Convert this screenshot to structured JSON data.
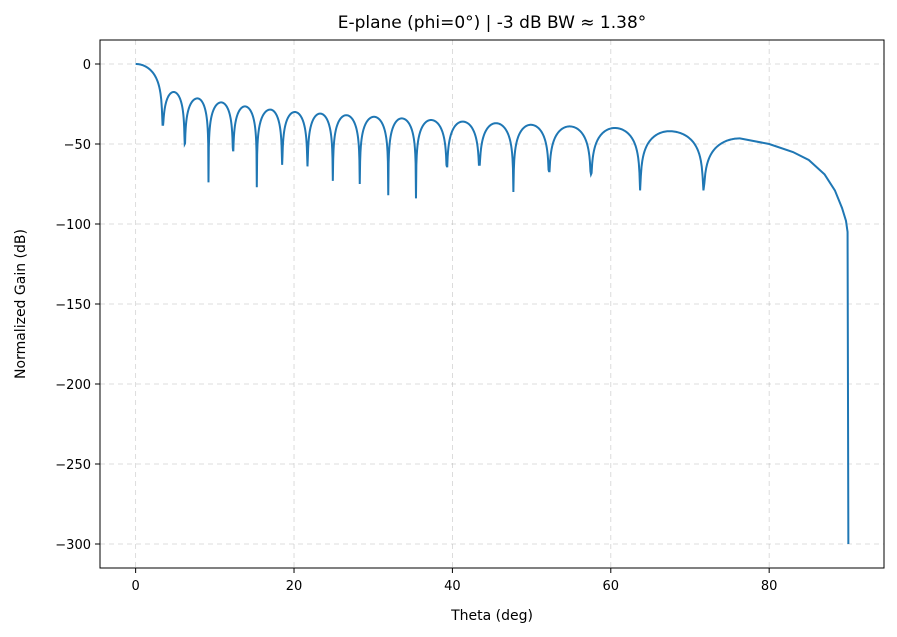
{
  "chart_data": {
    "type": "line",
    "title": "E-plane (phi=0°)  |  -3 dB BW ≈ 1.38°",
    "xlabel": "Theta (deg)",
    "ylabel": "Normalized Gain (dB)",
    "xlim": [
      -4.5,
      94.5
    ],
    "ylim": [
      -315,
      15
    ],
    "xticks": [
      0,
      20,
      40,
      60,
      80
    ],
    "yticks": [
      0,
      -50,
      -100,
      -150,
      -200,
      -250,
      -300
    ],
    "ytick_labels": [
      "0",
      "−50",
      "−100",
      "−150",
      "−200",
      "−250",
      "−300"
    ],
    "grid": true,
    "line_color": "#1f77b4",
    "lobes": {
      "peaks": [
        [
          0,
          0
        ],
        [
          4.8,
          -17.5
        ],
        [
          7.8,
          -21.5
        ],
        [
          10.8,
          -24
        ],
        [
          13.8,
          -26.5
        ],
        [
          17,
          -28.5
        ],
        [
          20.1,
          -30
        ],
        [
          23.3,
          -31
        ],
        [
          26.6,
          -32
        ],
        [
          30.1,
          -33
        ],
        [
          33.6,
          -34
        ],
        [
          37.3,
          -35
        ],
        [
          41.3,
          -36
        ],
        [
          45.5,
          -37
        ],
        [
          49.9,
          -38
        ],
        [
          54.8,
          -39
        ],
        [
          60.5,
          -40
        ],
        [
          67.4,
          -42
        ],
        [
          76.3,
          -46.5
        ]
      ],
      "nulls": [
        [
          3.4,
          -38
        ],
        [
          6.2,
          -50
        ],
        [
          9.2,
          -74
        ],
        [
          12.3,
          -54
        ],
        [
          15.3,
          -77
        ],
        [
          18.5,
          -63
        ],
        [
          21.7,
          -64
        ],
        [
          24.9,
          -73
        ],
        [
          28.3,
          -75
        ],
        [
          31.9,
          -82
        ],
        [
          35.4,
          -84
        ],
        [
          39.3,
          -64
        ],
        [
          43.4,
          -63
        ],
        [
          47.7,
          -80
        ],
        [
          52.2,
          -67
        ],
        [
          57.5,
          -69
        ],
        [
          63.7,
          -79
        ],
        [
          71.7,
          -79
        ]
      ]
    },
    "tail": [
      [
        76.3,
        -46.5
      ],
      [
        80,
        -50
      ],
      [
        83,
        -55
      ],
      [
        85,
        -60
      ],
      [
        87,
        -69
      ],
      [
        88.3,
        -79
      ],
      [
        89.2,
        -90
      ],
      [
        89.7,
        -98
      ],
      [
        89.9,
        -105
      ],
      [
        90,
        -300
      ]
    ]
  }
}
